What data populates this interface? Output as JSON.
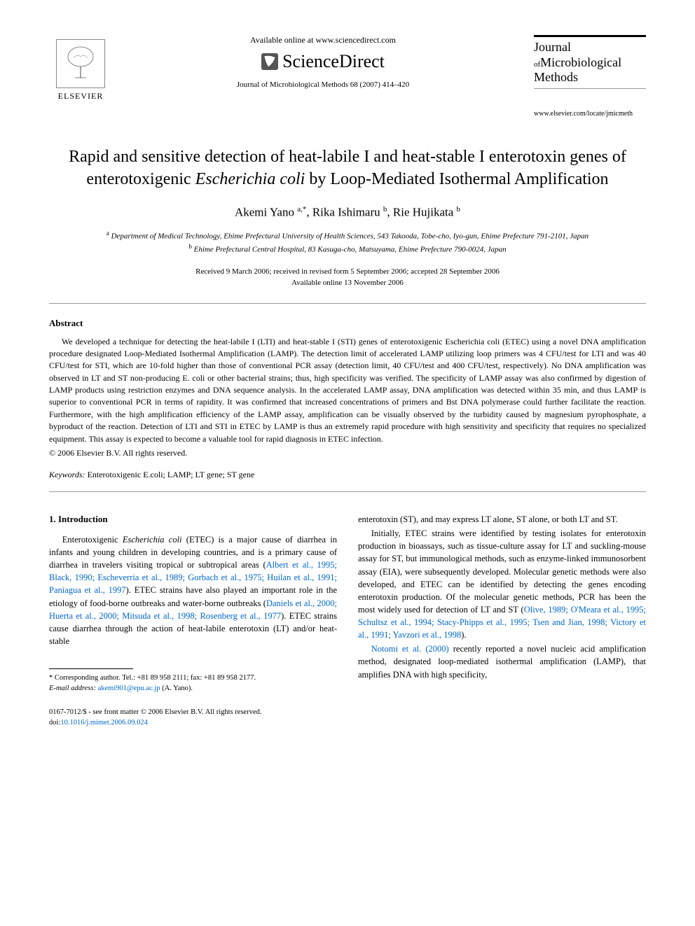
{
  "header": {
    "publisher_name": "ELSEVIER",
    "available_text": "Available online at www.sciencedirect.com",
    "platform_name": "ScienceDirect",
    "journal_ref": "Journal of Microbiological Methods 68 (2007) 414–420",
    "journal_title_line1": "Journal",
    "journal_title_of": "of",
    "journal_title_line2": "Microbiological",
    "journal_title_line3": "Methods",
    "journal_url": "www.elsevier.com/locate/jmicmeth"
  },
  "article": {
    "title_html": "Rapid and sensitive detection of heat-labile I and heat-stable I enterotoxin genes of enterotoxigenic <em>Escherichia coli</em> by Loop-Mediated Isothermal Amplification",
    "authors_html": "Akemi Yano <sup>a,*</sup>, Rika Ishimaru <sup>b</sup>, Rie Hujikata <sup>b</sup>",
    "affiliation_a": "Department of Medical Technology, Ehime Prefectural University of Health Sciences, 543 Takooda, Tobe-cho, Iyo-gun, Ehime Prefecture 791-2101, Japan",
    "affiliation_b": "Ehime Prefectural Central Hospital, 83 Kasuga-cho, Matsuyama, Ehime Prefecture 790-0024, Japan",
    "dates_line1": "Received 9 March 2006; received in revised form 5 September 2006; accepted 28 September 2006",
    "dates_line2": "Available online 13 November 2006"
  },
  "abstract": {
    "heading": "Abstract",
    "text": "We developed a technique for detecting the heat-labile I (LTI) and heat-stable I (STI) genes of enterotoxigenic Escherichia coli (ETEC) using a novel DNA amplification procedure designated Loop-Mediated Isothermal Amplification (LAMP). The detection limit of accelerated LAMP utilizing loop primers was 4 CFU/test for LTI and was 40 CFU/test for STI, which are 10-fold higher than those of conventional PCR assay (detection limit, 40 CFU/test and 400 CFU/test, respectively). No DNA amplification was observed in LT and ST non-producing E. coli or other bacterial strains; thus, high specificity was verified. The specificity of LAMP assay was also confirmed by digestion of LAMP products using restriction enzymes and DNA sequence analysis. In the accelerated LAMP assay, DNA amplification was detected within 35 min, and thus LAMP is superior to conventional PCR in terms of rapidity. It was confirmed that increased concentrations of primers and Bst DNA polymerase could further facilitate the reaction. Furthermore, with the high amplification efficiency of the LAMP assay, amplification can be visually observed by the turbidity caused by magnesium pyrophosphate, a byproduct of the reaction. Detection of LTI and STI in ETEC by LAMP is thus an extremely rapid procedure with high sensitivity and specificity that requires no specialized equipment. This assay is expected to become a valuable tool for rapid diagnosis in ETEC infection.",
    "copyright": "© 2006 Elsevier B.V. All rights reserved.",
    "keywords_label": "Keywords:",
    "keywords": "Enterotoxigenic E.coli; LAMP; LT gene; ST gene"
  },
  "body": {
    "section1_heading": "1. Introduction",
    "col1_para1_pre": "Enterotoxigenic ",
    "col1_para1_em1": "Escherichia coli",
    "col1_para1_mid": " (ETEC) is a major cause of diarrhea in infants and young children in developing countries, and is a primary cause of diarrhea in travelers visiting tropical or subtropical areas (",
    "col1_para1_refs1": "Albert et al., 1995; Black, 1990; Escheverria et al., 1989; Gorbach et al., 1975; Huilan et al., 1991; Paniagua et al., 1997",
    "col1_para1_mid2": "). ETEC strains have also played an important role in the etiology of food-borne outbreaks and water-borne outbreaks (",
    "col1_para1_refs2": "Daniels et al., 2000; Huerta et al., 2000; Mitsuda et al., 1998; Rosenberg et al., 1977",
    "col1_para1_end": "). ETEC strains cause diarrhea through the action of heat-labile enterotoxin (LT) and/or heat-stable",
    "col2_para1": "enterotoxin (ST), and may express LT alone, ST alone, or both LT and ST.",
    "col2_para2_pre": "Initially, ETEC strains were identified by testing isolates for enterotoxin production in bioassays, such as tissue-culture assay for LT and suckling-mouse assay for ST, but immunological methods, such as enzyme-linked immunosorbent assay (EIA), were subsequently developed. Molecular genetic methods were also developed, and ETEC can be identified by detecting the genes encoding enterotoxin production. Of the molecular genetic methods, PCR has been the most widely used for detection of LT and ST (",
    "col2_para2_refs": "Olive, 1989; O'Meara et al., 1995; Schultsz et al., 1994; Stacy-Phipps et al., 1995; Tsen and Jian, 1998; Victory et al., 1991; Yavzori et al., 1998",
    "col2_para2_end": ").",
    "col2_para3_ref": "Notomi et al. (2000)",
    "col2_para3_rest": " recently reported a novel nucleic acid amplification method, designated loop-mediated isothermal amplification (LAMP), that amplifies DNA with high specificity,"
  },
  "footnote": {
    "corresponding": "* Corresponding author. Tel.: +81 89 958 2111; fax: +81 89 958 2177.",
    "email_label": "E-mail address:",
    "email": "akemi901@epu.ac.jp",
    "email_author": "(A. Yano)."
  },
  "footer": {
    "issn_line": "0167-7012/$ - see front matter © 2006 Elsevier B.V. All rights reserved.",
    "doi_label": "doi:",
    "doi": "10.1016/j.mimet.2006.09.024"
  },
  "colors": {
    "link": "#0066cc",
    "text": "#000000",
    "rule": "#999999"
  }
}
